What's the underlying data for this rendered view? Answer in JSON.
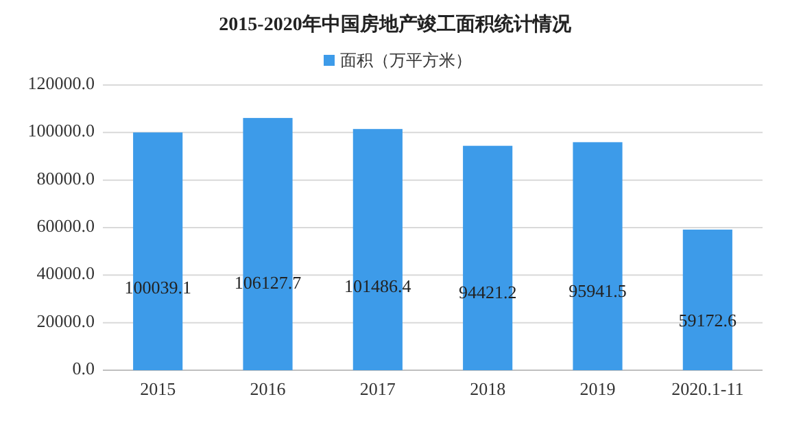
{
  "chart_data": {
    "type": "bar",
    "title": "2015-2020年中国房地产竣工面积统计情况",
    "categories": [
      "2015",
      "2016",
      "2017",
      "2018",
      "2019",
      "2020.1-11"
    ],
    "series": [
      {
        "name": "面积（万平方米）",
        "color": "#3d9be9",
        "values": [
          100039.1,
          106127.7,
          101486.4,
          94421.2,
          95941.5,
          59172.6
        ]
      }
    ],
    "ylim": [
      0,
      120000
    ],
    "yticks": [
      {
        "value": 0,
        "label": "0.0"
      },
      {
        "value": 20000,
        "label": "20000.0"
      },
      {
        "value": 40000,
        "label": "40000.0"
      },
      {
        "value": 60000,
        "label": "60000.0"
      },
      {
        "value": 80000,
        "label": "80000.0"
      },
      {
        "value": 100000,
        "label": "100000.0"
      },
      {
        "value": 120000,
        "label": "120000.0"
      }
    ],
    "grid": "y",
    "legend": "top",
    "data_labels": true
  }
}
